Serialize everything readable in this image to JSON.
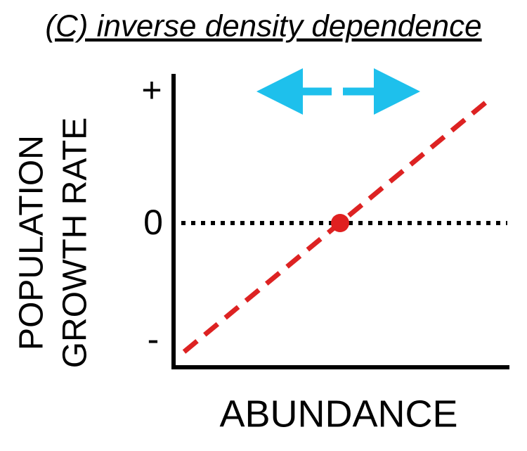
{
  "header": {
    "title": "(C) inverse density dependence"
  },
  "y_axis": {
    "label_lines": [
      "POPULATION",
      "GROWTH RATE"
    ],
    "tick_labels": [
      "+",
      "0",
      "-"
    ]
  },
  "x_axis": {
    "label": "ABUNDANCE"
  }
}
